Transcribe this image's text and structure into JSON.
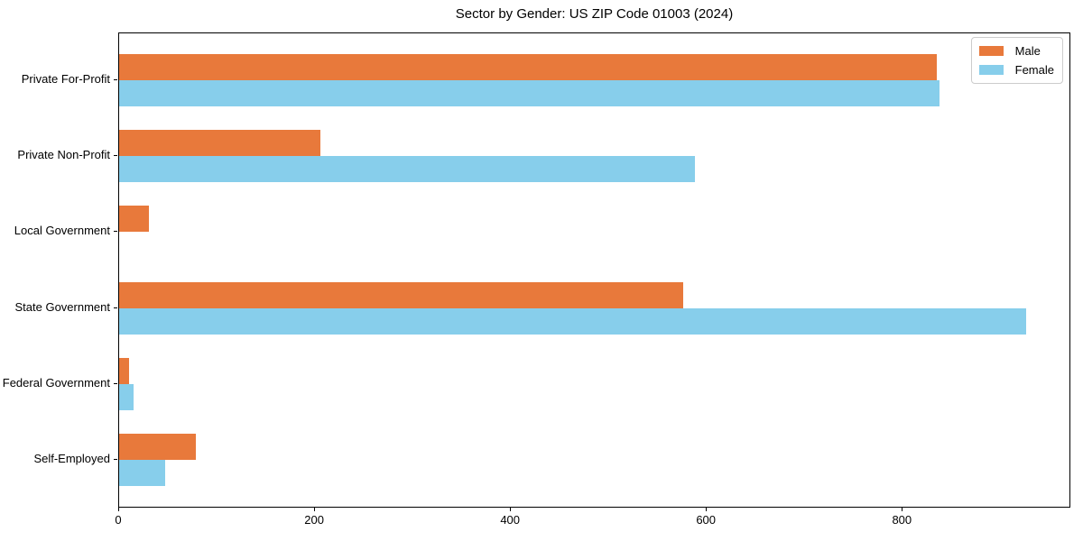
{
  "title": "Sector by Gender: US ZIP Code 01003 (2024)",
  "legend": {
    "items": [
      {
        "label": "Male",
        "color": "#e8793b"
      },
      {
        "label": "Female",
        "color": "#87ceeb"
      }
    ]
  },
  "chart_data": {
    "type": "bar",
    "orientation": "horizontal",
    "title": "Sector by Gender: US ZIP Code 01003 (2024)",
    "categories": [
      "Private For-Profit",
      "Private Non-Profit",
      "Local Government",
      "State Government",
      "Federal Government",
      "Self-Employed"
    ],
    "series": [
      {
        "name": "Male",
        "color": "#e8793b",
        "values": [
          835,
          205,
          30,
          576,
          10,
          78
        ]
      },
      {
        "name": "Female",
        "color": "#87ceeb",
        "values": [
          837,
          588,
          0,
          926,
          15,
          47
        ]
      }
    ],
    "xlabel": "",
    "ylabel": "",
    "xlim": [
      0,
      972
    ],
    "xticks": [
      0,
      200,
      400,
      600,
      800
    ],
    "grid": false,
    "legend_position": "upper right"
  }
}
